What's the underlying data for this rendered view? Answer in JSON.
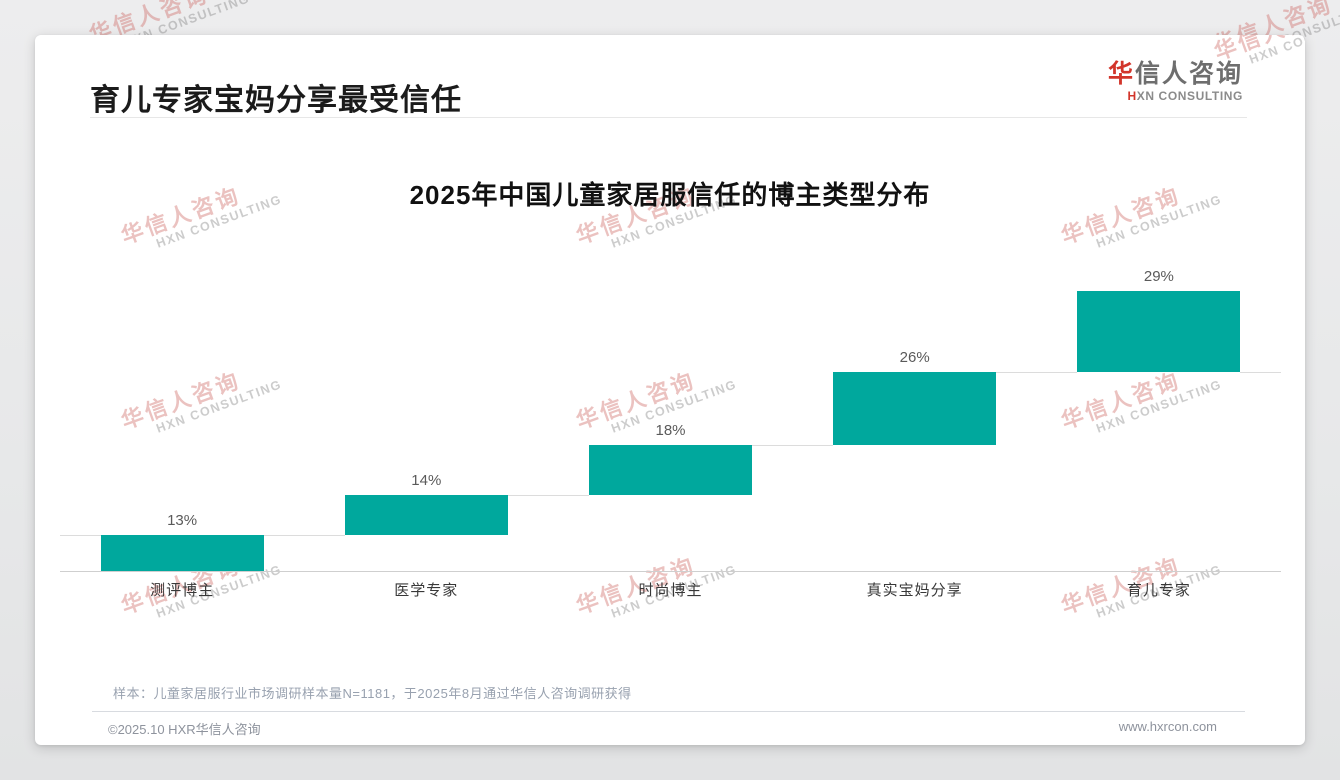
{
  "header": {
    "title": "育儿专家宝妈分享最受信任",
    "logo": {
      "cn_first": "华",
      "cn_rest": "信人咨询",
      "en_first": "H",
      "en_rest": "XN CONSULTING"
    }
  },
  "chart_data": {
    "type": "bar",
    "subtype": "waterfall-steps",
    "title": "2025年中国儿童家居服信任的博主类型分布",
    "categories": [
      "测评博主",
      "医学专家",
      "时尚博主",
      "真实宝妈分享",
      "育儿专家"
    ],
    "values": [
      13,
      14,
      18,
      26,
      29
    ],
    "labels": [
      "13%",
      "14%",
      "18%",
      "26%",
      "29%"
    ],
    "cumulative": [
      13,
      27,
      45,
      71,
      100
    ],
    "ylim": [
      0,
      100
    ],
    "grid": false,
    "legend": false,
    "bar_color": "#00a89d",
    "value_label_color": "#5a5a5a",
    "category_label_color": "#383838",
    "axis_color": "#cfcfcf",
    "connector_color": "#dcdcdc"
  },
  "note": {
    "text": "样本：儿童家居服行业市场调研样本量N=1181，于2025年8月通过华信人咨询调研获得"
  },
  "footer": {
    "copyright": "©2025.10 HXR华信人咨询",
    "website": "www.hxrcon.com"
  },
  "watermark": {
    "cn": "华信人咨询",
    "en": "HXN CONSULTING"
  },
  "colors": {
    "accent_red": "#d2352b",
    "bar_teal": "#00a89d",
    "page_title": "#1b1b1b",
    "note_gray": "#98a1af"
  }
}
